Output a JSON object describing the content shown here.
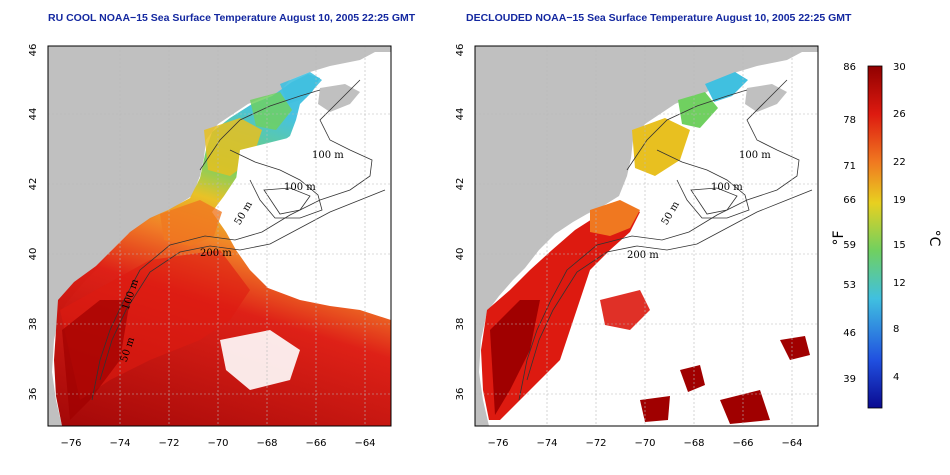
{
  "panels": [
    {
      "id": "left",
      "title": "RU COOL NOAA−15 Sea Surface Temperature August 10, 2005 22:25 GMT",
      "lon_ticks": [
        "−76",
        "−74",
        "−72",
        "−70",
        "−68",
        "−66",
        "−64"
      ],
      "lat_ticks": [
        "36",
        "38",
        "40",
        "42",
        "44",
        "46"
      ],
      "contour_labels": [
        "100 m",
        "100 m",
        "50 m",
        "200 m",
        "100 m",
        "50 m"
      ],
      "cloud_mask": "none"
    },
    {
      "id": "right",
      "title": "DECLOUDED NOAA−15 Sea Surface Temperature August 10, 2005 22:25 GMT",
      "lon_ticks": [
        "−76",
        "−74",
        "−72",
        "−70",
        "−68",
        "−66",
        "−64"
      ],
      "lat_ticks": [
        "36",
        "38",
        "40",
        "42",
        "44",
        "46"
      ],
      "contour_labels": [
        "100 m",
        "100 m",
        "50 m",
        "200 m"
      ],
      "cloud_mask": "applied"
    }
  ],
  "colorbar": {
    "fahrenheit_labels": [
      "86",
      "78",
      "71",
      "66",
      "59",
      "53",
      "46",
      "39"
    ],
    "celsius_labels": [
      "30",
      "26",
      "22",
      "19",
      "15",
      "12",
      "8",
      "4"
    ],
    "fahrenheit_unit": "°F",
    "celsius_unit": "°C",
    "colors": {
      "hot": "#a00000",
      "red": "#dd1a10",
      "orange": "#f07820",
      "yellow": "#e8d020",
      "green": "#70d060",
      "cyan": "#40c0e0",
      "blue": "#2050e0",
      "navy": "#0a0a90"
    }
  },
  "colors": {
    "land": "#c0c0c0",
    "title": "#1428a0",
    "grid": "#b8b8b8"
  }
}
